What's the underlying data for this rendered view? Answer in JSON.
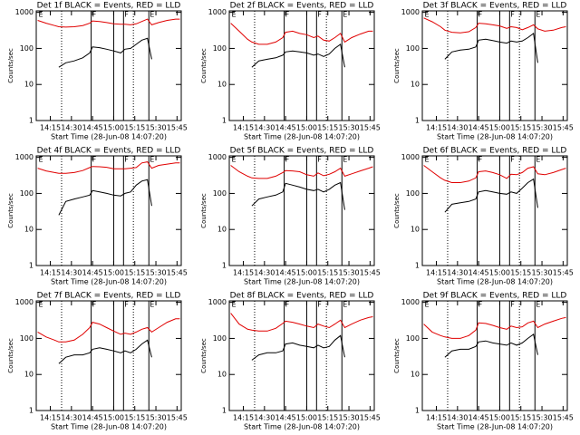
{
  "chart_data": [
    {
      "type": "line",
      "title": "Det 1f BLACK = Events, RED = LLD",
      "xlabel": "Start Time (28-Jun-08 14:07:20)",
      "ylabel": "Counts/sec",
      "log_y": true,
      "x": [
        "14:06",
        "14:12",
        "14:18",
        "14:21",
        "14:26",
        "14:32",
        "14:38",
        "14:43",
        "14:45",
        "14:50",
        "14:55",
        "15:00",
        "15:05",
        "15:08",
        "15:12",
        "15:16",
        "15:20",
        "15:24",
        "15:27",
        "15:32",
        "15:38",
        "15:44",
        "15:47"
      ],
      "series": [
        {
          "color": "#e00000",
          "values": [
            600,
            500,
            430,
            400,
            390,
            400,
            430,
            500,
            580,
            560,
            520,
            480,
            470,
            470,
            450,
            480,
            560,
            650,
            450,
            520,
            600,
            650,
            650
          ]
        },
        {
          "color": "#000000",
          "values": [
            null,
            null,
            null,
            30,
            40,
            45,
            55,
            75,
            110,
            105,
            95,
            85,
            75,
            95,
            100,
            130,
            170,
            190,
            50,
            null,
            null,
            null,
            null
          ]
        }
      ],
      "xlim": [
        "14:05",
        "15:48"
      ],
      "xticks": [
        "14:15",
        "14:30",
        "14:45",
        "15:00",
        "15:15",
        "15:30",
        "15:45"
      ],
      "ylim": [
        1,
        1100
      ],
      "yticks": [
        1,
        10,
        100,
        1000
      ]
    },
    {
      "type": "line",
      "title": "Det 2f BLACK = Events, RED = LLD",
      "xlabel": "Start Time (28-Jun-08 14:07:20)",
      "ylabel": "Counts/sec",
      "log_y": true,
      "x": [
        "14:06",
        "14:12",
        "14:18",
        "14:21",
        "14:26",
        "14:32",
        "14:38",
        "14:43",
        "14:45",
        "14:50",
        "14:55",
        "15:00",
        "15:05",
        "15:08",
        "15:12",
        "15:16",
        "15:20",
        "15:24",
        "15:27",
        "15:32",
        "15:38",
        "15:44",
        "15:47"
      ],
      "series": [
        {
          "color": "#e00000",
          "values": [
            500,
            300,
            180,
            150,
            130,
            130,
            150,
            200,
            280,
            300,
            260,
            240,
            200,
            220,
            170,
            160,
            200,
            260,
            150,
            200,
            250,
            300,
            300
          ]
        },
        {
          "color": "#000000",
          "values": [
            null,
            null,
            null,
            30,
            45,
            50,
            55,
            65,
            80,
            85,
            80,
            75,
            65,
            70,
            60,
            70,
            100,
            130,
            30,
            null,
            null,
            null,
            null
          ]
        }
      ],
      "xlim": [
        "14:05",
        "15:48"
      ],
      "xticks": [
        "14:15",
        "14:30",
        "14:45",
        "15:00",
        "15:15",
        "15:30",
        "15:45"
      ],
      "ylim": [
        1,
        1100
      ],
      "yticks": [
        1,
        10,
        100,
        1000
      ]
    },
    {
      "type": "line",
      "title": "Det 3f BLACK = Events, RED = LLD",
      "xlabel": "Start Time (28-Jun-08 14:07:20)",
      "ylabel": "Counts/sec",
      "log_y": true,
      "x": [
        "14:06",
        "14:12",
        "14:18",
        "14:21",
        "14:26",
        "14:32",
        "14:38",
        "14:43",
        "14:45",
        "14:50",
        "14:55",
        "15:00",
        "15:05",
        "15:08",
        "15:12",
        "15:16",
        "15:20",
        "15:24",
        "15:27",
        "15:32",
        "15:38",
        "15:44",
        "15:47"
      ],
      "series": [
        {
          "color": "#e00000",
          "values": [
            700,
            550,
            400,
            320,
            280,
            270,
            290,
            380,
            500,
            480,
            450,
            420,
            360,
            400,
            380,
            330,
            380,
            450,
            350,
            300,
            320,
            380,
            400
          ]
        },
        {
          "color": "#000000",
          "values": [
            null,
            null,
            null,
            50,
            80,
            90,
            95,
            110,
            170,
            180,
            165,
            150,
            140,
            160,
            150,
            160,
            200,
            260,
            40,
            null,
            null,
            null,
            null
          ]
        }
      ],
      "xlim": [
        "14:05",
        "15:48"
      ],
      "xticks": [
        "14:15",
        "14:30",
        "14:45",
        "15:00",
        "15:15",
        "15:30",
        "15:45"
      ],
      "ylim": [
        1,
        1100
      ],
      "yticks": [
        1,
        10,
        100,
        1000
      ]
    },
    {
      "type": "line",
      "title": "Det 4f BLACK = Events, RED = LLD",
      "xlabel": "Start Time (28-Jun-08 14:07:20)",
      "ylabel": "Counts/sec",
      "log_y": true,
      "x": [
        "14:06",
        "14:12",
        "14:18",
        "14:21",
        "14:26",
        "14:32",
        "14:38",
        "14:43",
        "14:45",
        "14:50",
        "14:55",
        "15:00",
        "15:05",
        "15:08",
        "15:12",
        "15:16",
        "15:20",
        "15:24",
        "15:27",
        "15:32",
        "15:38",
        "15:44",
        "15:47"
      ],
      "series": [
        {
          "color": "#e00000",
          "values": [
            500,
            420,
            380,
            360,
            360,
            380,
            430,
            520,
            560,
            550,
            530,
            480,
            480,
            480,
            500,
            520,
            700,
            750,
            500,
            600,
            650,
            700,
            700
          ]
        },
        {
          "color": "#000000",
          "values": [
            null,
            null,
            null,
            25,
            60,
            70,
            80,
            90,
            120,
            110,
            100,
            90,
            85,
            100,
            110,
            170,
            220,
            240,
            45,
            null,
            null,
            null,
            null
          ]
        }
      ],
      "xlim": [
        "14:05",
        "15:48"
      ],
      "xticks": [
        "14:15",
        "14:30",
        "14:45",
        "15:00",
        "15:15",
        "15:30",
        "15:45"
      ],
      "ylim": [
        1,
        1100
      ],
      "yticks": [
        1,
        10,
        100,
        1000
      ]
    },
    {
      "type": "line",
      "title": "Det 5f BLACK = Events, RED = LLD",
      "xlabel": "Start Time (28-Jun-08 14:07:20)",
      "ylabel": "Counts/sec",
      "log_y": true,
      "x": [
        "14:06",
        "14:12",
        "14:18",
        "14:21",
        "14:26",
        "14:32",
        "14:38",
        "14:43",
        "14:45",
        "14:50",
        "14:55",
        "15:00",
        "15:05",
        "15:08",
        "15:12",
        "15:16",
        "15:20",
        "15:24",
        "15:27",
        "15:32",
        "15:38",
        "15:44",
        "15:47"
      ],
      "series": [
        {
          "color": "#e00000",
          "values": [
            600,
            400,
            300,
            270,
            260,
            260,
            300,
            380,
            430,
            420,
            400,
            330,
            300,
            370,
            310,
            340,
            400,
            500,
            300,
            350,
            420,
            500,
            550
          ]
        },
        {
          "color": "#000000",
          "values": [
            null,
            null,
            null,
            45,
            70,
            80,
            90,
            110,
            190,
            170,
            150,
            130,
            120,
            130,
            110,
            130,
            170,
            200,
            35,
            null,
            null,
            null,
            null
          ]
        }
      ],
      "xlim": [
        "14:05",
        "15:48"
      ],
      "xticks": [
        "14:15",
        "14:30",
        "14:45",
        "15:00",
        "15:15",
        "15:30",
        "15:45"
      ],
      "ylim": [
        1,
        1100
      ],
      "yticks": [
        1,
        10,
        100,
        1000
      ]
    },
    {
      "type": "line",
      "title": "Det 6f BLACK = Events, RED = LLD",
      "xlabel": "Start Time (28-Jun-08 14:07:20)",
      "ylabel": "Counts/sec",
      "log_y": true,
      "x": [
        "14:06",
        "14:12",
        "14:18",
        "14:21",
        "14:26",
        "14:32",
        "14:38",
        "14:43",
        "14:45",
        "14:50",
        "14:55",
        "15:00",
        "15:05",
        "15:08",
        "15:12",
        "15:16",
        "15:20",
        "15:24",
        "15:27",
        "15:32",
        "15:38",
        "15:44",
        "15:47"
      ],
      "series": [
        {
          "color": "#e00000",
          "values": [
            600,
            400,
            270,
            230,
            200,
            200,
            220,
            270,
            400,
            420,
            380,
            330,
            260,
            340,
            330,
            380,
            500,
            550,
            350,
            330,
            380,
            460,
            500
          ]
        },
        {
          "color": "#000000",
          "values": [
            null,
            null,
            null,
            30,
            50,
            55,
            60,
            70,
            110,
            120,
            110,
            100,
            95,
            110,
            100,
            140,
            200,
            250,
            40,
            null,
            null,
            null,
            null
          ]
        }
      ],
      "xlim": [
        "14:05",
        "15:48"
      ],
      "xticks": [
        "14:15",
        "14:30",
        "14:45",
        "15:00",
        "15:15",
        "15:30",
        "15:45"
      ],
      "ylim": [
        1,
        1100
      ],
      "yticks": [
        1,
        10,
        100,
        1000
      ]
    },
    {
      "type": "line",
      "title": "Det 7f BLACK = Events, RED = LLD",
      "xlabel": "Start Time (28-Jun-08 14:07:20)",
      "ylabel": "Counts/sec",
      "log_y": true,
      "x": [
        "14:06",
        "14:12",
        "14:18",
        "14:21",
        "14:26",
        "14:32",
        "14:38",
        "14:43",
        "14:45",
        "14:50",
        "14:55",
        "15:00",
        "15:05",
        "15:08",
        "15:12",
        "15:16",
        "15:20",
        "15:24",
        "15:27",
        "15:32",
        "15:38",
        "15:44",
        "15:47"
      ],
      "series": [
        {
          "color": "#e00000",
          "values": [
            150,
            110,
            90,
            80,
            80,
            90,
            130,
            200,
            280,
            250,
            200,
            160,
            130,
            140,
            130,
            150,
            180,
            200,
            150,
            200,
            280,
            350,
            350
          ]
        },
        {
          "color": "#000000",
          "values": [
            null,
            null,
            null,
            20,
            30,
            35,
            35,
            40,
            50,
            55,
            50,
            45,
            40,
            45,
            40,
            50,
            70,
            90,
            30,
            null,
            null,
            null,
            null
          ]
        }
      ],
      "xlim": [
        "14:05",
        "15:48"
      ],
      "xticks": [
        "14:15",
        "14:30",
        "14:45",
        "15:00",
        "15:15",
        "15:30",
        "15:45"
      ],
      "ylim": [
        1,
        1100
      ],
      "yticks": [
        1,
        10,
        100,
        1000
      ]
    },
    {
      "type": "line",
      "title": "Det 8f BLACK = Events, RED = LLD",
      "xlabel": "Start Time (28-Jun-08 14:07:20)",
      "ylabel": "Counts/sec",
      "log_y": true,
      "x": [
        "14:06",
        "14:12",
        "14:18",
        "14:21",
        "14:26",
        "14:32",
        "14:38",
        "14:43",
        "14:45",
        "14:50",
        "14:55",
        "15:00",
        "15:05",
        "15:08",
        "15:12",
        "15:16",
        "15:20",
        "15:24",
        "15:27",
        "15:32",
        "15:38",
        "15:44",
        "15:47"
      ],
      "series": [
        {
          "color": "#e00000",
          "values": [
            500,
            250,
            180,
            170,
            160,
            160,
            190,
            260,
            300,
            280,
            250,
            220,
            200,
            250,
            220,
            200,
            250,
            320,
            200,
            250,
            320,
            380,
            400
          ]
        },
        {
          "color": "#000000",
          "values": [
            null,
            null,
            null,
            25,
            35,
            40,
            40,
            45,
            70,
            75,
            65,
            60,
            55,
            65,
            55,
            60,
            90,
            120,
            30,
            null,
            null,
            null,
            null
          ]
        }
      ],
      "xlim": [
        "14:05",
        "15:48"
      ],
      "xticks": [
        "14:15",
        "14:30",
        "14:45",
        "15:00",
        "15:15",
        "15:30",
        "15:45"
      ],
      "ylim": [
        1,
        1100
      ],
      "yticks": [
        1,
        10,
        100,
        1000
      ]
    },
    {
      "type": "line",
      "title": "Det 9f BLACK = Events, RED = LLD",
      "xlabel": "Start Time (28-Jun-08 14:07:20)",
      "ylabel": "Counts/sec",
      "log_y": true,
      "x": [
        "14:06",
        "14:12",
        "14:18",
        "14:21",
        "14:26",
        "14:32",
        "14:38",
        "14:43",
        "14:45",
        "14:50",
        "14:55",
        "15:00",
        "15:05",
        "15:08",
        "15:12",
        "15:16",
        "15:20",
        "15:24",
        "15:27",
        "15:32",
        "15:38",
        "15:44",
        "15:47"
      ],
      "series": [
        {
          "color": "#e00000",
          "values": [
            250,
            150,
            120,
            110,
            100,
            100,
            120,
            170,
            270,
            260,
            230,
            200,
            180,
            220,
            200,
            210,
            270,
            300,
            200,
            250,
            300,
            360,
            380
          ]
        },
        {
          "color": "#000000",
          "values": [
            null,
            null,
            null,
            30,
            45,
            50,
            50,
            60,
            80,
            85,
            75,
            70,
            65,
            75,
            65,
            75,
            100,
            130,
            35,
            null,
            null,
            null,
            null
          ]
        }
      ],
      "xlim": [
        "14:05",
        "15:48"
      ],
      "xticks": [
        "14:15",
        "14:30",
        "14:45",
        "15:00",
        "15:15",
        "15:30",
        "15:45"
      ],
      "ylim": [
        1,
        1100
      ],
      "yticks": [
        1,
        10,
        100,
        1000
      ]
    }
  ],
  "markers": {
    "solid": [
      "14:44",
      "15:00",
      "15:07",
      "15:25"
    ],
    "dotted": [
      "14:23",
      "15:14"
    ],
    "flags": [
      {
        "x": "14:06",
        "label": "E"
      },
      {
        "x": "14:44",
        "label": "F"
      },
      {
        "x": "15:07",
        "label": "F"
      },
      {
        "x": "15:25",
        "label": "E"
      }
    ]
  }
}
